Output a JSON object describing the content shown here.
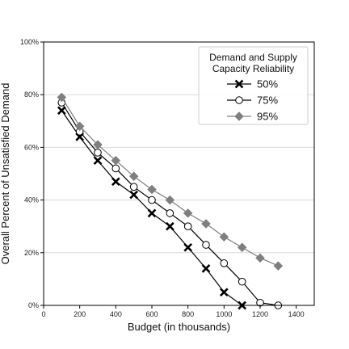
{
  "chart_data": {
    "type": "line",
    "xlabel": "Budget (in thousands)",
    "ylabel": "Overall Percent of Unsatisfied Demand",
    "xlim": [
      0,
      1500
    ],
    "ylim": [
      0,
      100
    ],
    "x_ticks": [
      0,
      200,
      400,
      600,
      800,
      1000,
      1200,
      1400
    ],
    "y_ticks": [
      0,
      20,
      40,
      60,
      80,
      100
    ],
    "y_tick_labels": [
      "0%",
      "20%",
      "40%",
      "60%",
      "80%",
      "100%"
    ],
    "grid": "horizontal",
    "legend": {
      "title_line1": "Demand and Supply",
      "title_line2": "Capacity Reliability",
      "placement": "top-right"
    },
    "series": [
      {
        "name": "50%",
        "marker": "x",
        "color": "#000000",
        "points": [
          [
            100,
            74
          ],
          [
            200,
            64
          ],
          [
            300,
            55
          ],
          [
            400,
            47
          ],
          [
            500,
            42
          ],
          [
            600,
            35
          ],
          [
            700,
            30
          ],
          [
            800,
            22
          ],
          [
            900,
            14
          ],
          [
            1000,
            5
          ],
          [
            1100,
            0
          ]
        ]
      },
      {
        "name": "75%",
        "marker": "circle",
        "color": "#000000",
        "points": [
          [
            100,
            77
          ],
          [
            200,
            66
          ],
          [
            300,
            58
          ],
          [
            400,
            52
          ],
          [
            500,
            45
          ],
          [
            600,
            40
          ],
          [
            700,
            35
          ],
          [
            800,
            30
          ],
          [
            900,
            23
          ],
          [
            1000,
            16
          ],
          [
            1100,
            9
          ],
          [
            1200,
            1
          ],
          [
            1300,
            0
          ]
        ]
      },
      {
        "name": "95%",
        "marker": "diamond",
        "color": "#7f7f7f",
        "points": [
          [
            100,
            79
          ],
          [
            200,
            68
          ],
          [
            300,
            61
          ],
          [
            400,
            55
          ],
          [
            500,
            49
          ],
          [
            600,
            44
          ],
          [
            700,
            40
          ],
          [
            800,
            35
          ],
          [
            900,
            31
          ],
          [
            1000,
            26
          ],
          [
            1100,
            22
          ],
          [
            1200,
            18
          ],
          [
            1300,
            15
          ]
        ]
      }
    ]
  }
}
